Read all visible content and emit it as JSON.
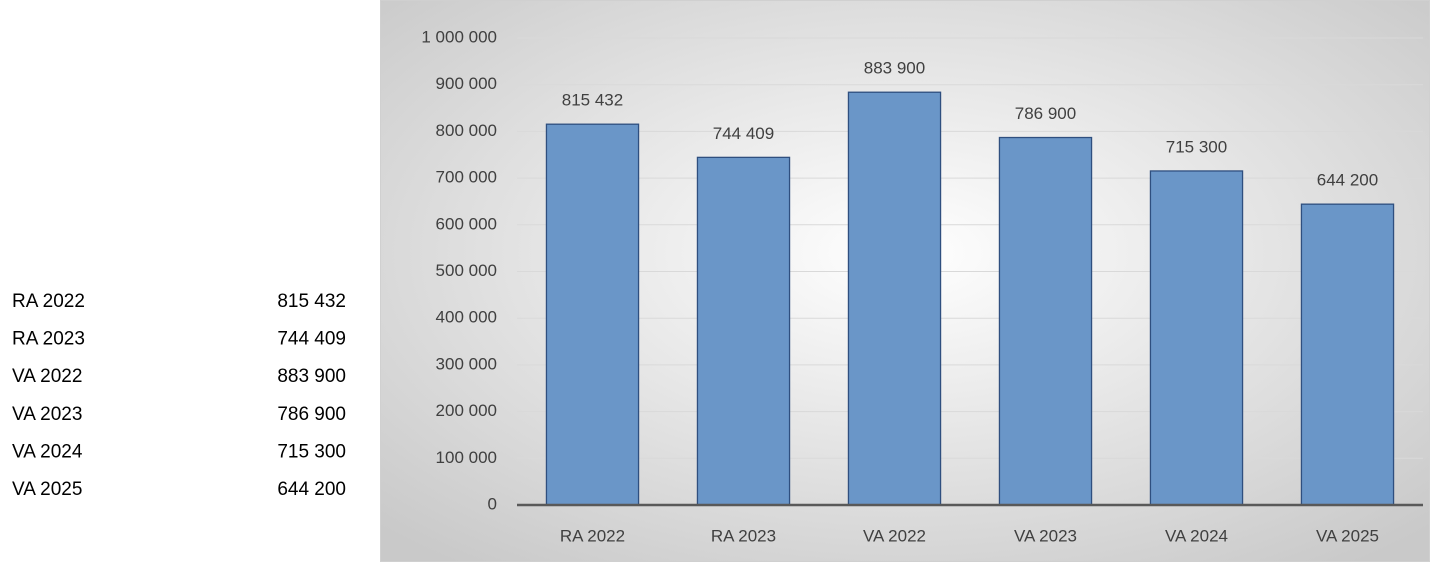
{
  "table": {
    "rows": [
      [
        "RA 2022",
        "815 432"
      ],
      [
        "RA 2023",
        "744 409"
      ],
      [
        "VA 2022",
        "883 900"
      ],
      [
        "VA 2023",
        "786 900"
      ],
      [
        "VA 2024",
        "715 300"
      ],
      [
        "VA 2025",
        "644 200"
      ]
    ]
  },
  "chart_data": {
    "type": "bar",
    "categories": [
      "RA 2022",
      "RA 2023",
      "VA 2022",
      "VA 2023",
      "VA 2024",
      "VA 2025"
    ],
    "values": [
      815432,
      744409,
      883900,
      786900,
      715300,
      644200
    ],
    "value_labels": [
      "815 432",
      "744 409",
      "883 900",
      "786 900",
      "715 300",
      "644 200"
    ],
    "color": "#6a96c8",
    "ylim": [
      0,
      1000000
    ],
    "yticks": [
      0,
      {
        "value": 100000,
        "label": "100 000"
      },
      {
        "value": 200000,
        "label": "200 000"
      },
      {
        "value": 300000,
        "label": "300 000"
      },
      {
        "value": 400000,
        "label": "400 000"
      },
      {
        "value": 500000,
        "label": "500 000"
      },
      {
        "value": 600000,
        "label": "600 000"
      },
      {
        "value": 700000,
        "label": "700 000"
      },
      {
        "value": 800000,
        "label": "800 000"
      },
      {
        "value": 900000,
        "label": "900 000"
      },
      {
        "value": 1000000,
        "label": "1 000 000"
      }
    ],
    "grid": true
  }
}
